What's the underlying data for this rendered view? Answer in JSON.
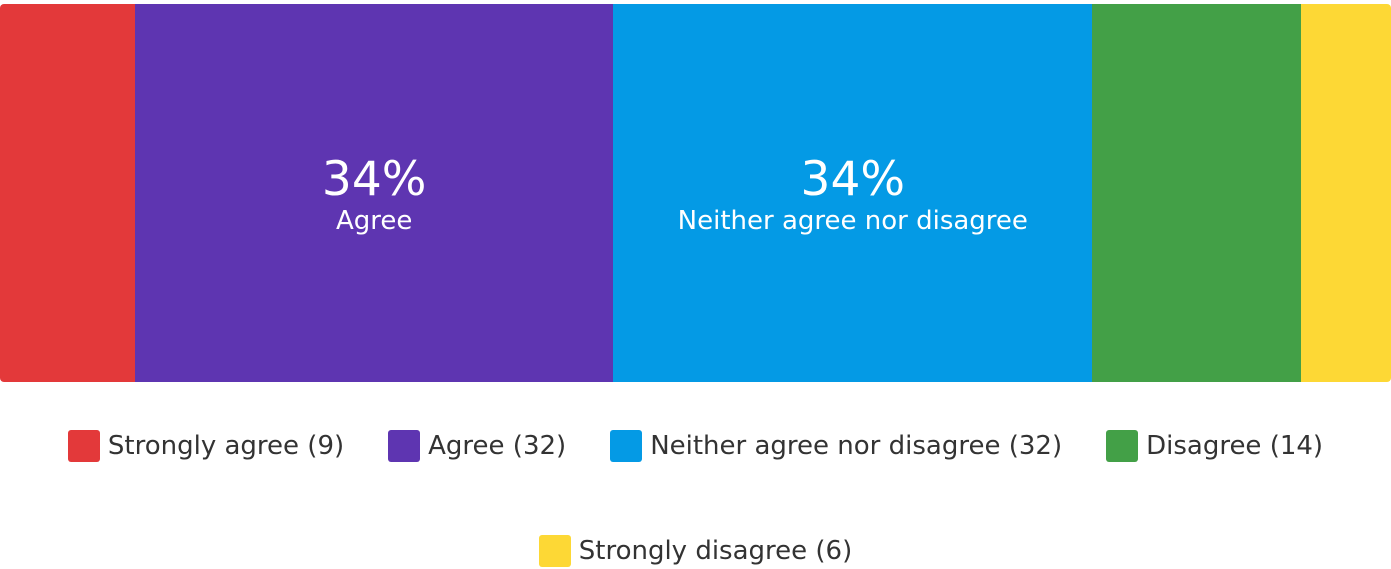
{
  "chart_data": {
    "type": "bar",
    "orientation": "horizontal-stacked-100",
    "categories": [
      "Strongly agree",
      "Agree",
      "Neither agree nor disagree",
      "Disagree",
      "Strongly disagree"
    ],
    "values": [
      9,
      32,
      32,
      14,
      6
    ],
    "series": [
      {
        "name": "Strongly agree",
        "value": 9,
        "color": "#E3393A"
      },
      {
        "name": "Agree",
        "value": 32,
        "color": "#5E35B1"
      },
      {
        "name": "Neither agree nor disagree",
        "value": 32,
        "color": "#049AE5"
      },
      {
        "name": "Disagree",
        "value": 14,
        "color": "#43A047"
      },
      {
        "name": "Strongly disagree",
        "value": 6,
        "color": "#FDD835"
      }
    ],
    "data_labels": [
      {
        "series": "Agree",
        "percent": "34%",
        "name": "Agree"
      },
      {
        "series": "Neither agree nor disagree",
        "percent": "34%",
        "name": "Neither agree nor disagree"
      }
    ],
    "legend": {
      "placement": "bottom",
      "entries": [
        "Strongly agree (9)",
        "Agree (32)",
        "Neither agree nor disagree (32)",
        "Disagree (14)",
        "Strongly disagree (6)"
      ]
    },
    "title": "",
    "xlabel": "",
    "ylabel": "",
    "grid": false
  }
}
